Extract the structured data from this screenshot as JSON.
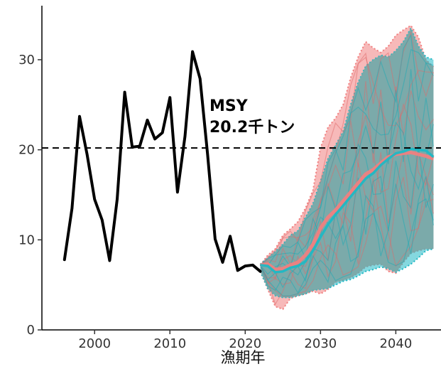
{
  "chart_data": {
    "type": "line",
    "xlabel": "漁期年",
    "ylabel": "",
    "xlim": [
      1993,
      2046
    ],
    "ylim": [
      0,
      36
    ],
    "x_ticks": [
      2000,
      2010,
      2020,
      2030,
      2040
    ],
    "y_ticks": [
      0,
      10,
      20,
      30
    ],
    "grid": false,
    "reference_line": {
      "y": 20.2,
      "style": "dashed",
      "label_line1": "MSY",
      "label_line2": "20.2千トン"
    },
    "observed": {
      "color": "#000000",
      "x": [
        1996,
        1997,
        1998,
        1999,
        2000,
        2001,
        2002,
        2003,
        2004,
        2005,
        2006,
        2007,
        2008,
        2009,
        2010,
        2011,
        2012,
        2013,
        2014,
        2015,
        2016,
        2017,
        2018,
        2019,
        2020,
        2021,
        2022
      ],
      "y": [
        7.8,
        13.5,
        23.7,
        19.5,
        14.5,
        12.2,
        7.7,
        14.5,
        26.4,
        20.3,
        20.4,
        23.3,
        21.2,
        21.9,
        25.8,
        15.3,
        21.5,
        30.9,
        27.9,
        19.5,
        10.1,
        7.5,
        10.4,
        6.6,
        7.1,
        7.2,
        6.5
      ]
    },
    "projection_x": [
      2022,
      2023,
      2024,
      2025,
      2026,
      2027,
      2028,
      2029,
      2030,
      2031,
      2032,
      2033,
      2034,
      2035,
      2036,
      2037,
      2038,
      2039,
      2040,
      2041,
      2042,
      2043,
      2044,
      2045
    ],
    "series": [
      {
        "color": "#f08080",
        "band_upper": [
          7.2,
          8.3,
          9.0,
          10.5,
          11.2,
          12.0,
          13.5,
          15.5,
          20.2,
          22.5,
          23.5,
          25.0,
          28.0,
          30.3,
          32.0,
          31.3,
          30.8,
          31.5,
          32.7,
          33.3,
          33.8,
          32.5,
          30.0,
          29.2
        ],
        "band_lower": [
          6.5,
          4.5,
          2.6,
          2.3,
          3.5,
          3.8,
          4.0,
          4.3,
          4.0,
          4.5,
          5.3,
          5.5,
          5.8,
          6.3,
          7.0,
          7.2,
          7.3,
          6.5,
          6.3,
          7.5,
          8.5,
          8.8,
          9.0,
          9.0
        ],
        "median": [
          7.2,
          7.3,
          6.7,
          6.8,
          7.2,
          7.5,
          8.3,
          9.5,
          11.3,
          12.5,
          13.3,
          14.3,
          15.3,
          16.3,
          17.3,
          17.8,
          18.5,
          19.2,
          19.5,
          19.6,
          19.7,
          19.5,
          19.3,
          19.0
        ]
      },
      {
        "color": "#1fb8c4",
        "band_upper": [
          7.3,
          8.0,
          8.7,
          9.5,
          10.5,
          11.0,
          12.5,
          14.0,
          16.5,
          19.0,
          20.5,
          22.0,
          25.0,
          27.5,
          29.3,
          30.0,
          30.5,
          30.3,
          31.0,
          32.0,
          33.5,
          31.5,
          30.3,
          30.0
        ],
        "band_lower": [
          6.5,
          4.6,
          3.8,
          3.6,
          3.6,
          3.8,
          4.0,
          4.4,
          4.5,
          4.6,
          5.0,
          5.4,
          5.6,
          6.0,
          6.5,
          6.7,
          7.0,
          6.8,
          6.4,
          6.8,
          7.3,
          8.0,
          8.8,
          9.0
        ],
        "median": [
          7.2,
          7.1,
          6.4,
          6.5,
          6.9,
          7.1,
          7.6,
          8.8,
          10.3,
          11.7,
          12.8,
          13.8,
          14.8,
          15.8,
          16.8,
          17.4,
          18.3,
          19.0,
          19.6,
          19.8,
          20.1,
          20.0,
          19.9,
          19.2
        ]
      }
    ],
    "overlap_color": "#7aa5a3"
  }
}
